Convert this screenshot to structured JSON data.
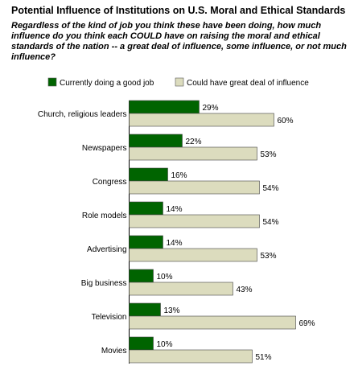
{
  "chart_data": {
    "type": "bar",
    "orientation": "horizontal",
    "title": "Potential Influence of Institutions on U.S. Moral and Ethical Standards",
    "subtitle": "Regardless of the kind of job you think these have been doing, how much influence do you think each COULD have on raising the moral and ethical standards of the nation -- a great deal of influence, some influence, or not much influence?",
    "categories": [
      "Church, religious leaders",
      "Newspapers",
      "Congress",
      "Role models",
      "Advertising",
      "Big business",
      "Television",
      "Movies"
    ],
    "series": [
      {
        "name": "Currently doing a good job",
        "values": [
          29,
          22,
          16,
          14,
          14,
          10,
          13,
          10
        ],
        "color": "#006400"
      },
      {
        "name": "Could have great deal of influence",
        "values": [
          60,
          53,
          54,
          54,
          53,
          43,
          69,
          51
        ],
        "color": "#dcdcbe"
      }
    ],
    "value_suffix": "%",
    "xlim": [
      0,
      100
    ],
    "legend_position": "top",
    "grid": false,
    "xlabel": "",
    "ylabel": ""
  }
}
